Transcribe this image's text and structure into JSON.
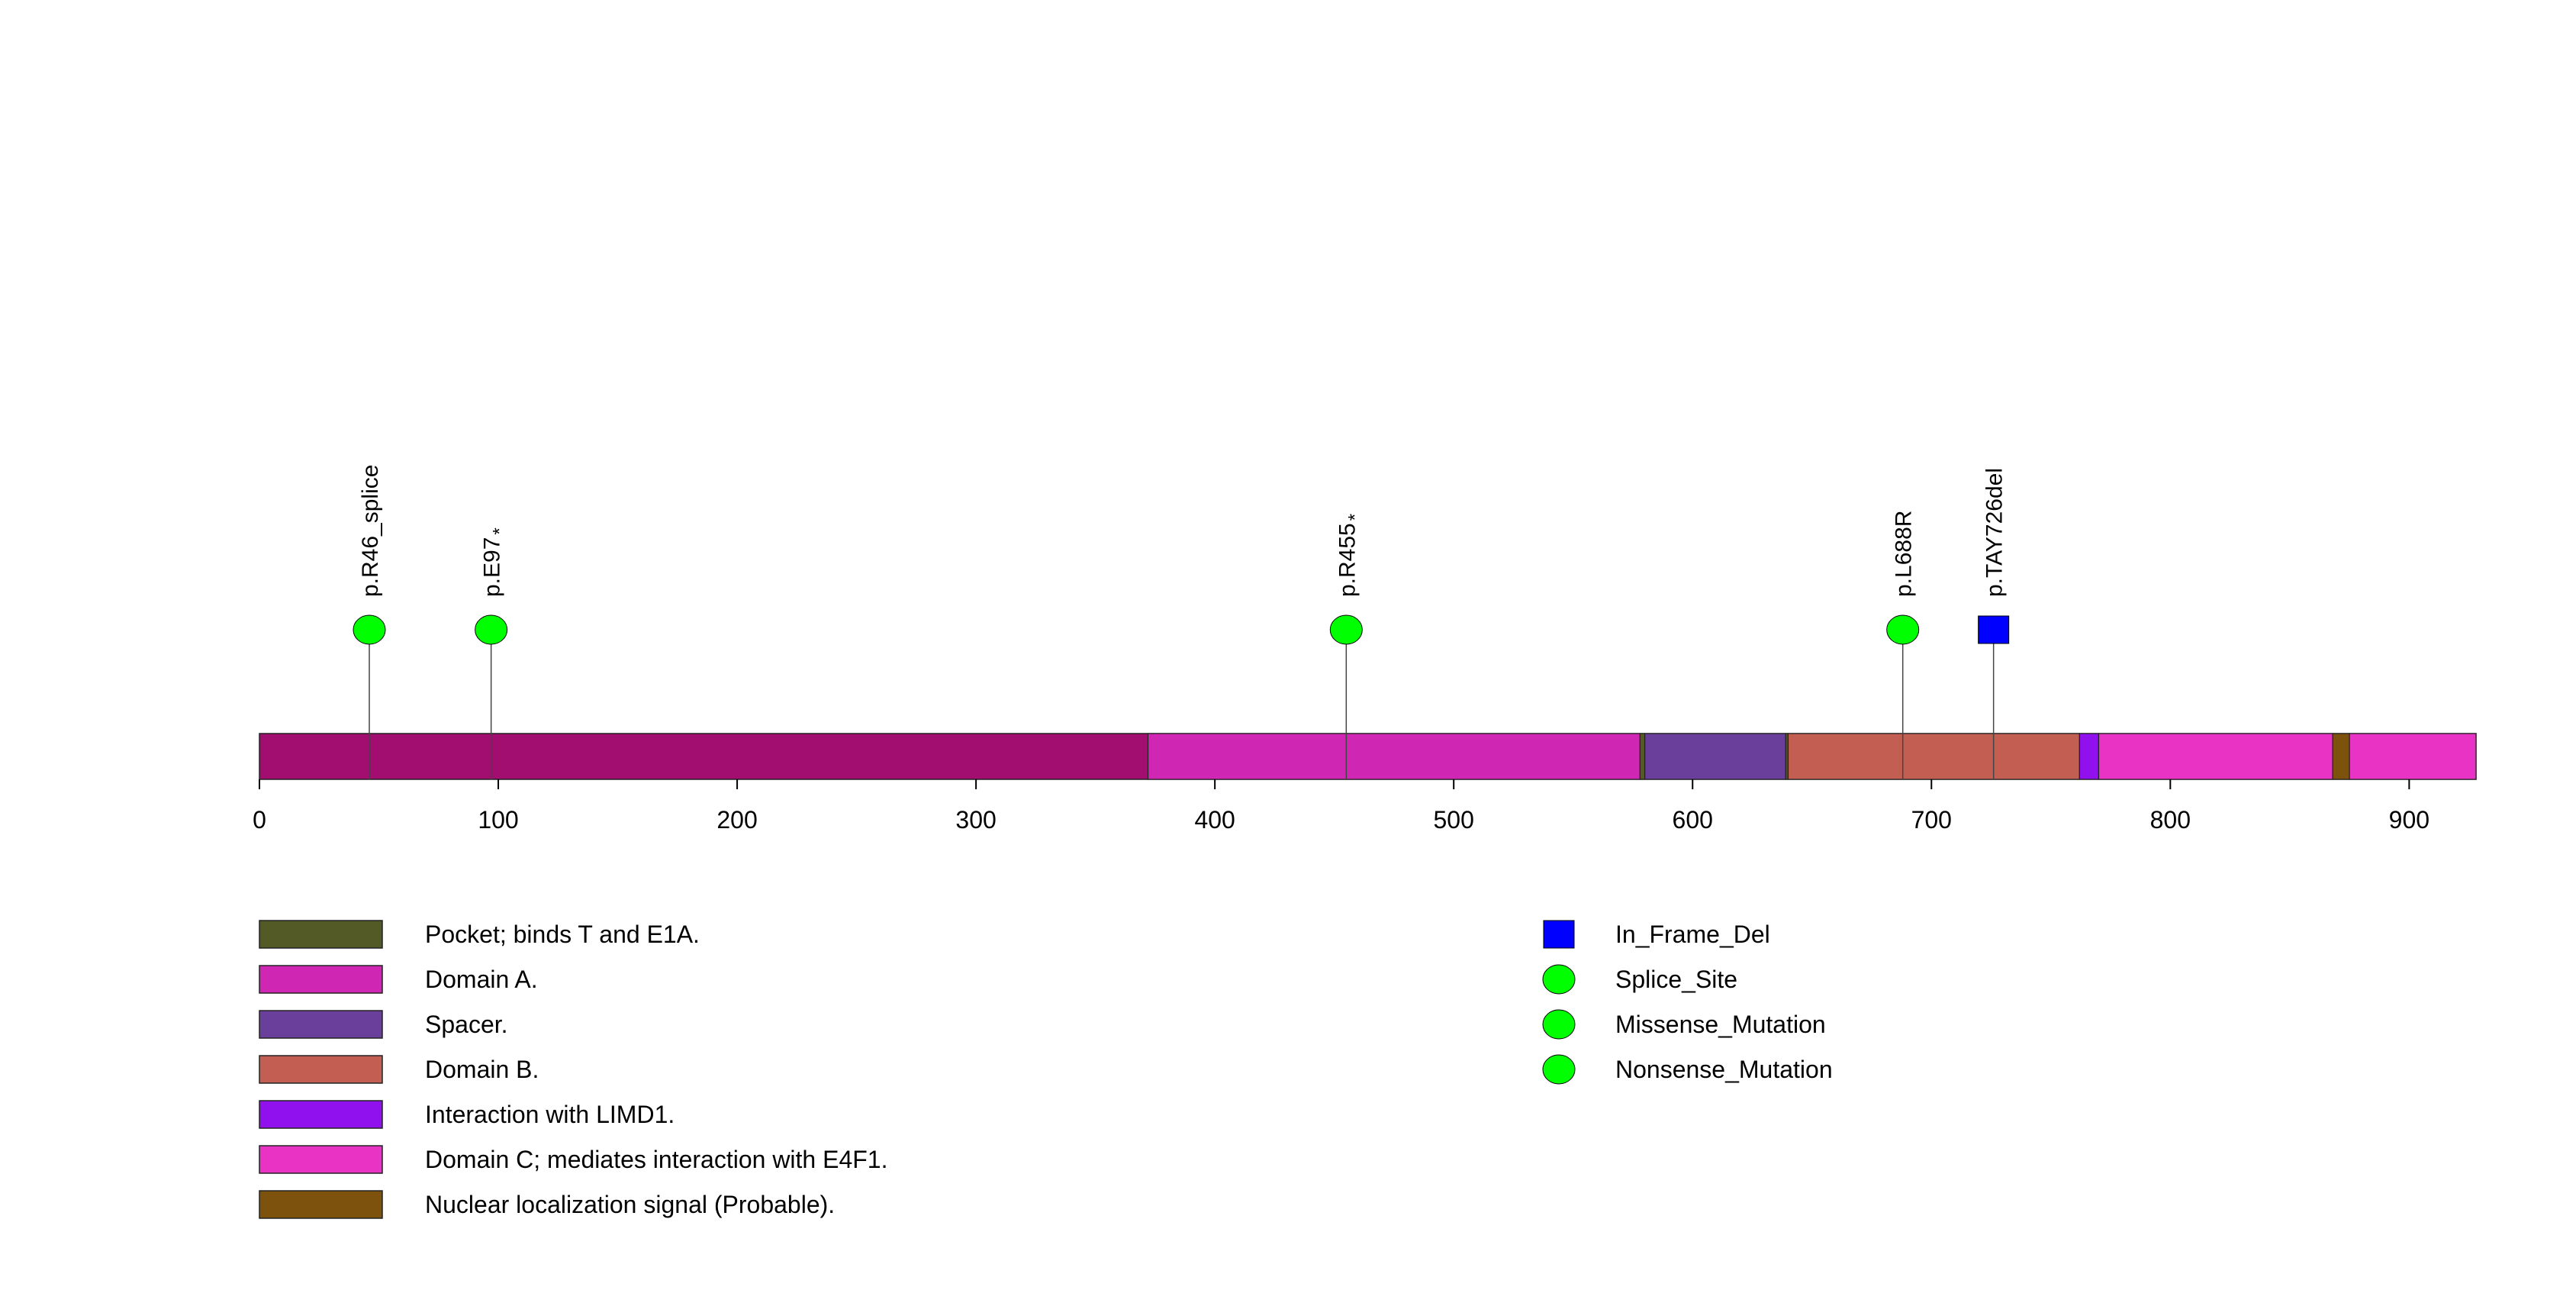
{
  "chart_data": {
    "type": "lollipop",
    "protein_length": 928,
    "axis": {
      "min": 0,
      "max": 928,
      "ticks": [
        0,
        100,
        200,
        300,
        400,
        500,
        600,
        700,
        800,
        900
      ],
      "tick_labels": [
        "0",
        "100",
        "200",
        "300",
        "400",
        "500",
        "600",
        "700",
        "800",
        "900"
      ]
    },
    "backbone_color": "#a20d70",
    "domains": [
      {
        "start": 372,
        "end": 578,
        "name": "Domain A.",
        "color": "#d026b4"
      },
      {
        "start": 578,
        "end": 580,
        "name": "Pocket; binds T and E1A.",
        "color": "#535a26"
      },
      {
        "start": 580,
        "end": 639,
        "name": "Spacer.",
        "color": "#6a3f9b"
      },
      {
        "start": 639,
        "end": 640,
        "name": "Pocket; binds T and E1A.",
        "color": "#535a26"
      },
      {
        "start": 640,
        "end": 762,
        "name": "Domain B.",
        "color": "#c35e52"
      },
      {
        "start": 762,
        "end": 770,
        "name": "Interaction with LIMD1.",
        "color": "#9011ee"
      },
      {
        "start": 770,
        "end": 868,
        "name": "Domain C; mediates interaction with E4F1.",
        "color": "#e933c4"
      },
      {
        "start": 868,
        "end": 875,
        "name": "Nuclear localization signal (Probable).",
        "color": "#7d520c"
      },
      {
        "start": 875,
        "end": 928,
        "name": "Domain C; mediates interaction with E4F1.",
        "color": "#e933c4"
      }
    ],
    "mutations": [
      {
        "position": 46,
        "label": "p.R46_splice",
        "type": "Splice_Site"
      },
      {
        "position": 97,
        "label": "p.E97",
        "star": "*",
        "type": "Nonsense_Mutation"
      },
      {
        "position": 455,
        "label": "p.R455",
        "star": "*",
        "type": "Nonsense_Mutation"
      },
      {
        "position": 688,
        "label": "p.L688R",
        "type": "Missense_Mutation"
      },
      {
        "position": 726,
        "label": "p.TAY726del",
        "type": "In_Frame_Del"
      }
    ],
    "domain_legend": [
      {
        "label": "Pocket; binds T and E1A.",
        "color": "#535a26"
      },
      {
        "label": "Domain A.",
        "color": "#d026b4"
      },
      {
        "label": "Spacer.",
        "color": "#6a3f9b"
      },
      {
        "label": "Domain B.",
        "color": "#c35e52"
      },
      {
        "label": "Interaction with LIMD1.",
        "color": "#9011ee"
      },
      {
        "label": "Domain C; mediates interaction with E4F1.",
        "color": "#e933c4"
      },
      {
        "label": "Nuclear localization signal (Probable).",
        "color": "#7d520c"
      }
    ],
    "mutation_legend": [
      {
        "label": "In_Frame_Del",
        "shape": "square",
        "color": "#0000ff"
      },
      {
        "label": "Splice_Site",
        "shape": "circle",
        "color": "#00ff00"
      },
      {
        "label": "Missense_Mutation",
        "shape": "circle",
        "color": "#00ff00"
      },
      {
        "label": "Nonsense_Mutation",
        "shape": "circle",
        "color": "#00ff00"
      }
    ]
  }
}
